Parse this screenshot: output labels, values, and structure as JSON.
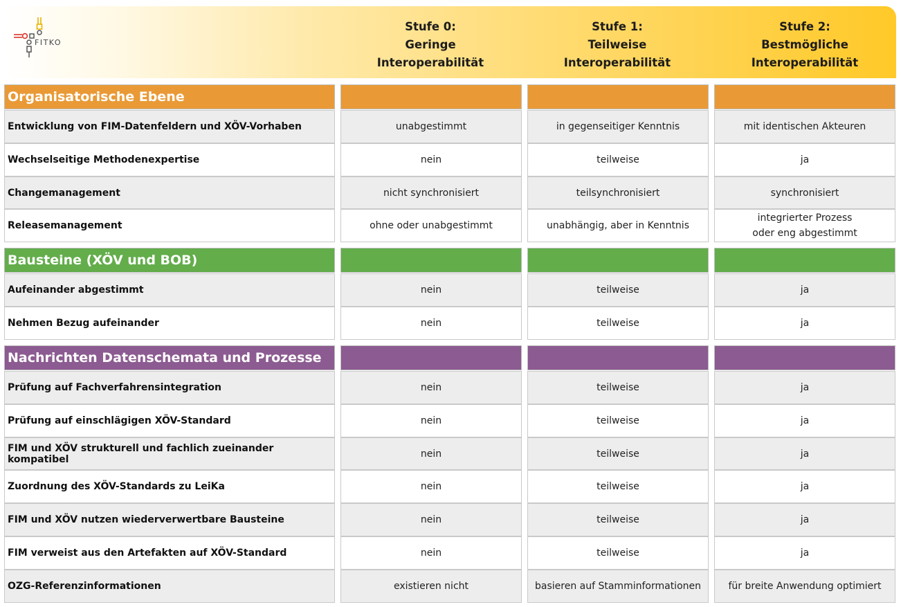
{
  "brand": {
    "logo_text": "FITKO"
  },
  "stages": [
    {
      "line1": "Stufe 0:",
      "line2": "Geringe",
      "line3": "Interoperabilität"
    },
    {
      "line1": "Stufe 1:",
      "line2": "Teilweise",
      "line3": "Interoperabilität"
    },
    {
      "line1": "Stufe 2:",
      "line2": "Bestmögliche",
      "line3": "Interoperabilität"
    }
  ],
  "colors": {
    "orange": "#e99a36",
    "green": "#63ad4b",
    "purple": "#8c5b91"
  },
  "sections": [
    {
      "title": "Organisatorische Ebene",
      "color": "orange",
      "rows": [
        {
          "label": "Entwicklung von FIM-Datenfeldern und XÖV-Vorhaben",
          "values": [
            "unabgestimmt",
            "in gegenseitiger Kenntnis",
            "mit identischen Akteuren"
          ]
        },
        {
          "label": "Wechselseitige Methodenexpertise",
          "values": [
            "nein",
            "teilweise",
            "ja"
          ]
        },
        {
          "label": "Changemanagement",
          "values": [
            "nicht synchronisiert",
            "teilsynchronisiert",
            "synchronisiert"
          ]
        },
        {
          "label": "Releasemanagement",
          "values": [
            "ohne oder unabgestimmt",
            "unabhängig, aber in Kenntnis",
            "integrierter Prozess\noder eng abgestimmt"
          ]
        }
      ]
    },
    {
      "title": "Bausteine (XÖV und BOB)",
      "color": "green",
      "rows": [
        {
          "label": "Aufeinander abgestimmt",
          "values": [
            "nein",
            "teilweise",
            "ja"
          ]
        },
        {
          "label": "Nehmen Bezug aufeinander",
          "values": [
            "nein",
            "teilweise",
            "ja"
          ]
        }
      ]
    },
    {
      "title": "Nachrichten Datenschemata und Prozesse",
      "color": "purple",
      "rows": [
        {
          "label": "Prüfung auf Fachverfahrensintegration",
          "values": [
            "nein",
            "teilweise",
            "ja"
          ]
        },
        {
          "label": "Prüfung auf einschlägigen XÖV-Standard",
          "values": [
            "nein",
            "teilweise",
            "ja"
          ]
        },
        {
          "label": "FIM und XÖV strukturell und fachlich zueinander kompatibel",
          "values": [
            "nein",
            "teilweise",
            "ja"
          ]
        },
        {
          "label": "Zuordnung des XÖV-Standards zu LeiKa",
          "values": [
            "nein",
            "teilweise",
            "ja"
          ]
        },
        {
          "label": "FIM und XÖV nutzen wiederverwertbare Bausteine",
          "values": [
            "nein",
            "teilweise",
            "ja"
          ]
        },
        {
          "label": "FIM verweist aus den Artefakten auf XÖV-Standard",
          "values": [
            "nein",
            "teilweise",
            "ja"
          ]
        },
        {
          "label": "OZG-Referenzinformationen",
          "values": [
            "existieren nicht",
            "basieren  auf Stamminformationen",
            "für breite Anwendung optimiert"
          ]
        }
      ]
    }
  ]
}
